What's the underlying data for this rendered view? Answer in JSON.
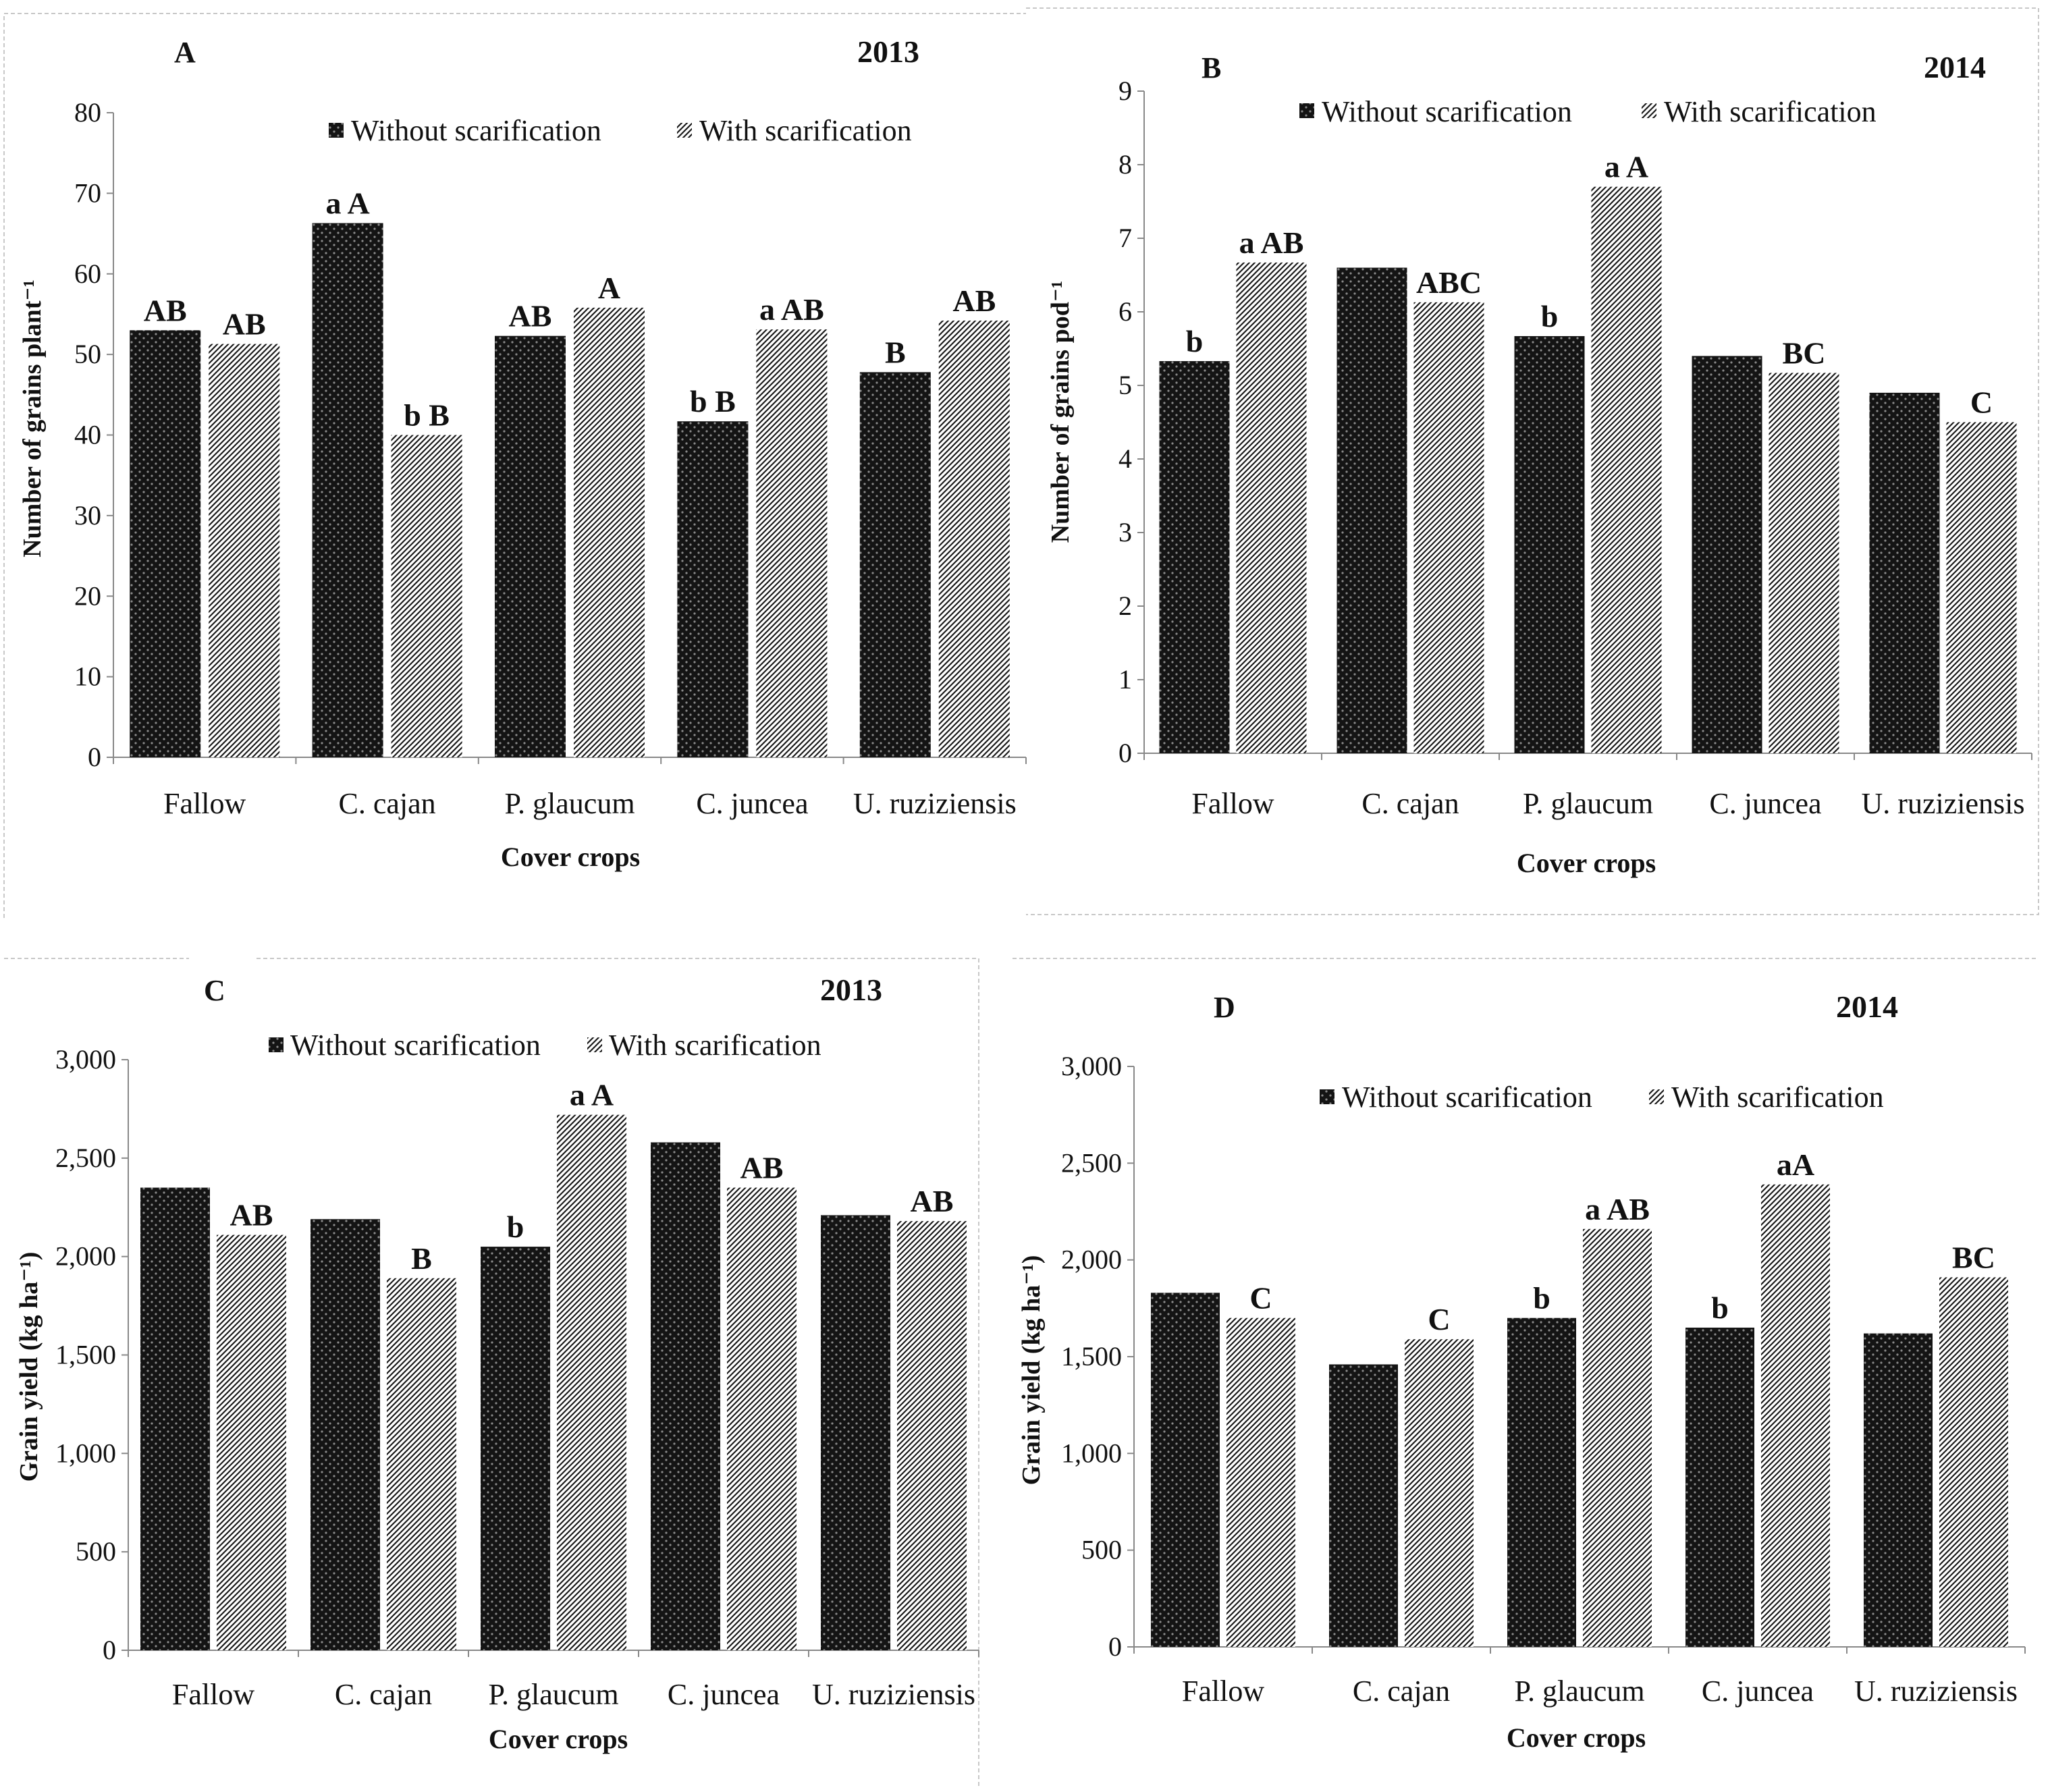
{
  "chart_data": [
    {
      "panel": "A",
      "year": "2013",
      "type": "bar",
      "categories": [
        "Fallow",
        "C. cajan",
        "P. glaucum",
        "C. juncea",
        "U. ruziziensis"
      ],
      "series": [
        {
          "name": "Without scarification",
          "values": [
            53,
            66.3,
            52.3,
            41.7,
            47.8
          ]
        },
        {
          "name": "With scarification",
          "values": [
            51.3,
            40,
            55.8,
            53.1,
            54.2
          ]
        }
      ],
      "annotations": [
        [
          "AB",
          "AB"
        ],
        [
          "a A",
          "b B"
        ],
        [
          "AB",
          "A"
        ],
        [
          "b B",
          "a AB"
        ],
        [
          "B",
          "AB"
        ]
      ],
      "xlabel": "Cover crops",
      "ylabel": "Number of grains plant⁻¹",
      "ylim": [
        0,
        80
      ],
      "yticks": [
        "0",
        "10",
        "20",
        "30",
        "40",
        "50",
        "60",
        "70",
        "80"
      ],
      "legend": "top"
    },
    {
      "panel": "B",
      "year": "2014",
      "type": "bar",
      "categories": [
        "Fallow",
        "C. cajan",
        "P. glaucum",
        "C. juncea",
        "U. ruziziensis"
      ],
      "series": [
        {
          "name": "Without scarification",
          "values": [
            5.33,
            6.6,
            5.67,
            5.4,
            4.9
          ]
        },
        {
          "name": "With scarification",
          "values": [
            6.67,
            6.13,
            7.7,
            5.17,
            4.5
          ]
        }
      ],
      "annotations": [
        [
          "b",
          "a AB"
        ],
        [
          "",
          "ABC"
        ],
        [
          "b",
          "a A"
        ],
        [
          "",
          "BC"
        ],
        [
          "",
          "C"
        ]
      ],
      "xlabel": "Cover crops",
      "ylabel": "Number of grains pod⁻¹",
      "ylim": [
        0,
        9
      ],
      "yticks": [
        "0",
        "1",
        "2",
        "3",
        "4",
        "5",
        "6",
        "7",
        "8",
        "9"
      ],
      "legend": "top"
    },
    {
      "panel": "C",
      "year": "2013",
      "type": "bar",
      "categories": [
        "Fallow",
        "C. cajan",
        "P. glaucum",
        "C. juncea",
        "U. ruziziensis"
      ],
      "series": [
        {
          "name": "Without scarification",
          "values": [
            2350,
            2190,
            2050,
            2580,
            2210
          ]
        },
        {
          "name": "With scarification",
          "values": [
            2110,
            1890,
            2720,
            2350,
            2180
          ]
        }
      ],
      "annotations": [
        [
          "",
          "AB"
        ],
        [
          "",
          "B"
        ],
        [
          "b",
          "a A"
        ],
        [
          "",
          "AB"
        ],
        [
          "",
          "AB"
        ]
      ],
      "xlabel": "Cover crops",
      "ylabel": "Grain yield (kg ha⁻¹)",
      "ylim": [
        0,
        3000
      ],
      "yticks": [
        "0",
        "500",
        "1,000",
        "1,500",
        "2,000",
        "2,500",
        "3,000"
      ],
      "legend": "top"
    },
    {
      "panel": "D",
      "year": "2014",
      "type": "bar",
      "categories": [
        "Fallow",
        "C. cajan",
        "P. glaucum",
        "C. juncea",
        "U. ruziziensis"
      ],
      "series": [
        {
          "name": "Without scarification",
          "values": [
            1830,
            1460,
            1700,
            1650,
            1620
          ]
        },
        {
          "name": "With scarification",
          "values": [
            1700,
            1590,
            2160,
            2390,
            1910
          ]
        }
      ],
      "annotations": [
        [
          "",
          "C"
        ],
        [
          "",
          "C"
        ],
        [
          "b",
          "a AB"
        ],
        [
          "b",
          "aA"
        ],
        [
          "",
          "BC"
        ]
      ],
      "xlabel": "Cover crops",
      "ylabel": "Grain yield (kg ha⁻¹)",
      "ylim": [
        0,
        3000
      ],
      "yticks": [
        "0",
        "500",
        "1,000",
        "1,500",
        "2,000",
        "2,500",
        "3,000"
      ],
      "legend": "top"
    }
  ],
  "colors": {
    "without_fill": "#141414",
    "without_dot": "#8a8a8a",
    "with_fill": "#ffffff",
    "with_hatch": "#1a1a1a",
    "axis": "#888888",
    "text": "#111111"
  }
}
